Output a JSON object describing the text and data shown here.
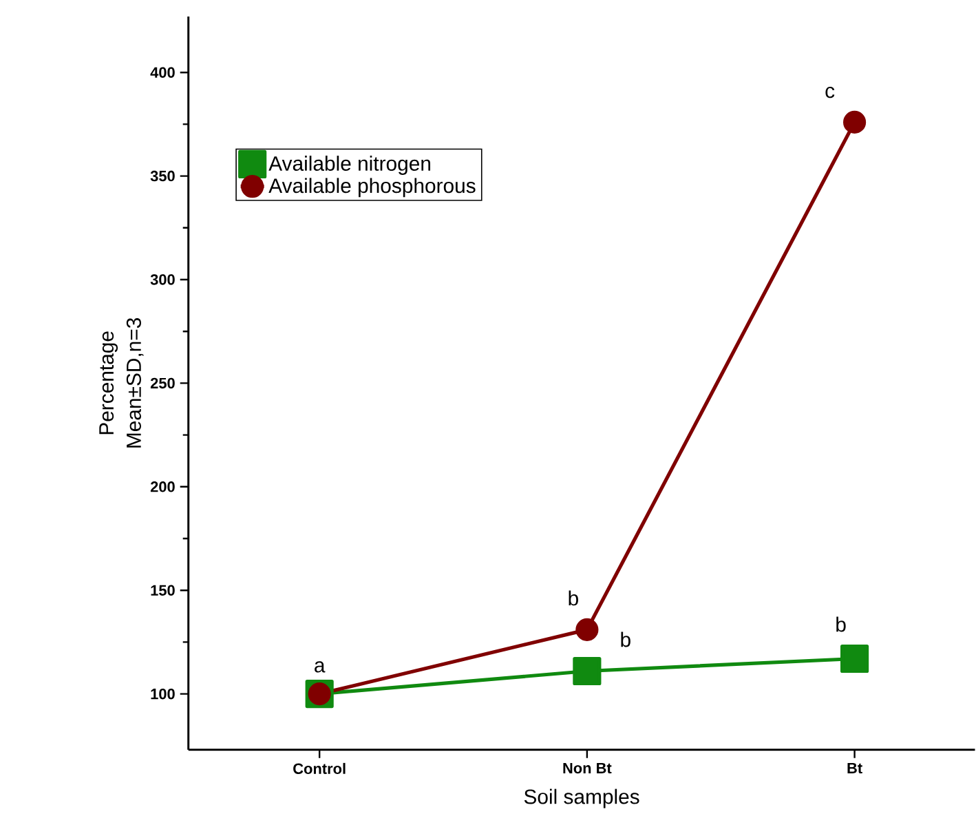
{
  "chart_data": {
    "type": "line",
    "xlabel": "Soil samples",
    "ylabel": "Percentage Mean±SD,n=3",
    "categories": [
      "Control",
      "Non Bt",
      "Bt"
    ],
    "series": [
      {
        "name": "Available nitrogen",
        "color": "#108a10",
        "marker": "square",
        "values": [
          100,
          111,
          117
        ]
      },
      {
        "name": "Available phosphorous",
        "color": "#800000",
        "marker": "circle",
        "values": [
          100,
          131,
          376
        ]
      }
    ],
    "ylim": [
      73,
      427
    ],
    "yticks": [
      100,
      150,
      200,
      250,
      300,
      350,
      400
    ],
    "legend": "top left",
    "annotations": [
      {
        "text": "a",
        "x": "Control",
        "y": 100
      },
      {
        "text": "b",
        "x": "Non Bt",
        "y": 131
      },
      {
        "text": "b",
        "x": "Non Bt",
        "y": 111
      },
      {
        "text": "c",
        "x": "Bt",
        "y": 376
      },
      {
        "text": "b",
        "x": "Bt",
        "y": 117
      }
    ]
  }
}
